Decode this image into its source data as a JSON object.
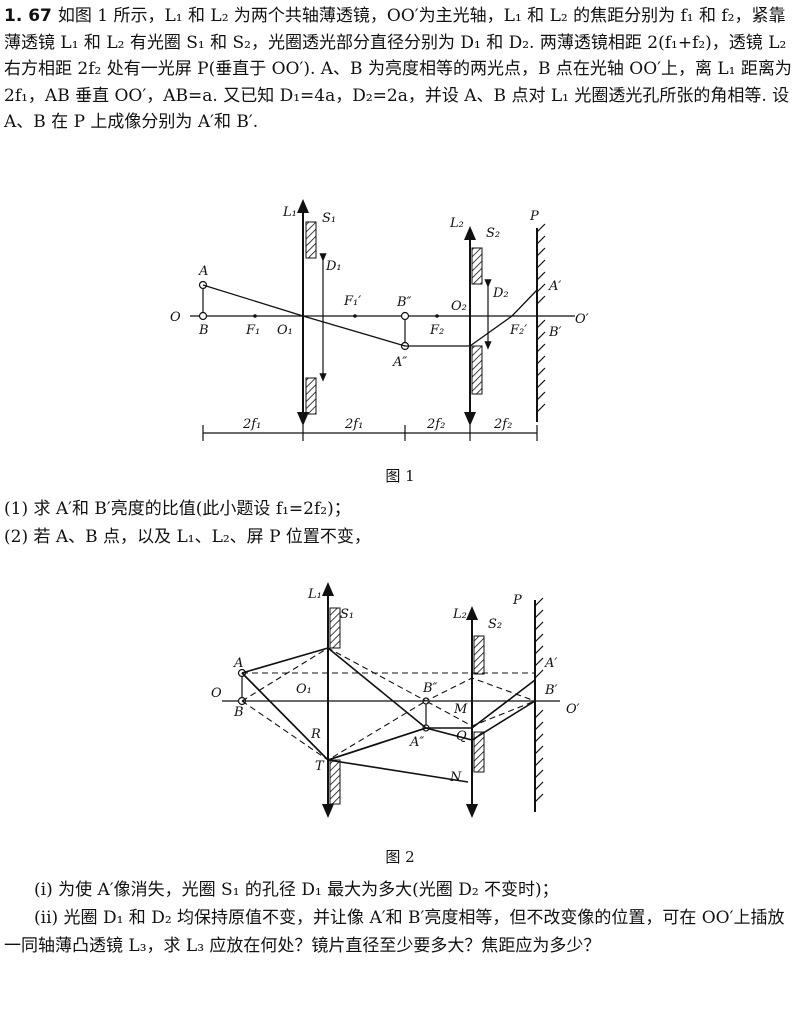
{
  "problem": {
    "number": "1. 67",
    "text": "如图 1 所示，L₁ 和 L₂ 为两个共轴薄透镜，OO′为主光轴，L₁ 和 L₂ 的焦距分别为 f₁ 和 f₂，紧靠薄透镜 L₁ 和 L₂ 有光圈 S₁ 和 S₂，光圈透光部分直径分别为 D₁ 和 D₂. 两薄透镜相距 2(f₁+f₂)，透镜 L₂ 右方相距 2f₂ 处有一光屏 P(垂直于 OO′). A、B 为亮度相等的两光点，B 点在光轴 OO′上，离 L₁ 距离为 2f₁，AB 垂直 OO′，AB=a. 又已知 D₁=4a，D₂=2a，并设 A、B 点对 L₁ 光圈透光孔所张的角相等. 设 A、B 在 P 上成像分别为 A′和 B′."
  },
  "figure1": {
    "caption": "图 1",
    "labels": {
      "L1": "L₁",
      "S1": "S₁",
      "L2": "L₂",
      "S2": "S₂",
      "P": "P",
      "A": "A",
      "O": "O",
      "B": "B",
      "F1": "F₁",
      "O1": "O₁",
      "D1": "D₁",
      "F1p": "F₁′",
      "Bpp": "B″",
      "App": "A″",
      "O2": "O₂",
      "F2": "F₂",
      "D2": "D₂",
      "Ap": "A′",
      "F2p": "F₂′",
      "Bp": "B′",
      "Op": "O′"
    },
    "dimensions": [
      "2f₁",
      "2f₁",
      "2f₂",
      "2f₂"
    ]
  },
  "questions": {
    "q1": "(1) 求 A′和 B′亮度的比值(此小题设 f₁=2f₂)；",
    "q2": "(2) 若 A、B 点，以及 L₁、L₂、屏 P 位置不变，"
  },
  "figure2": {
    "caption": "图 2",
    "labels": {
      "L1": "L₁",
      "S1": "S₁",
      "L2": "L₂",
      "S2": "S₂",
      "P": "P",
      "A": "A",
      "O": "O",
      "B": "B",
      "O1": "O₁",
      "R": "R",
      "T": "T",
      "Bpp": "B″",
      "App": "A″",
      "M": "M",
      "Q": "Q",
      "N": "N",
      "Ap": "A′",
      "Bp": "B′",
      "Op": "O′"
    }
  },
  "subquestions": {
    "i": "(i) 为使 A′像消失，光圈 S₁ 的孔径 D₁ 最大为多大(光圈 D₂ 不变时)；",
    "ii": "(ii) 光圈 D₁ 和 D₂ 均保持原值不变，并让像 A′和 B′亮度相等，但不改变像的位置，可在 OO′上插放一同轴薄凸透镜 L₃，求 L₃ 应放在何处？镜片直径至少要多大？焦距应为多少？"
  }
}
